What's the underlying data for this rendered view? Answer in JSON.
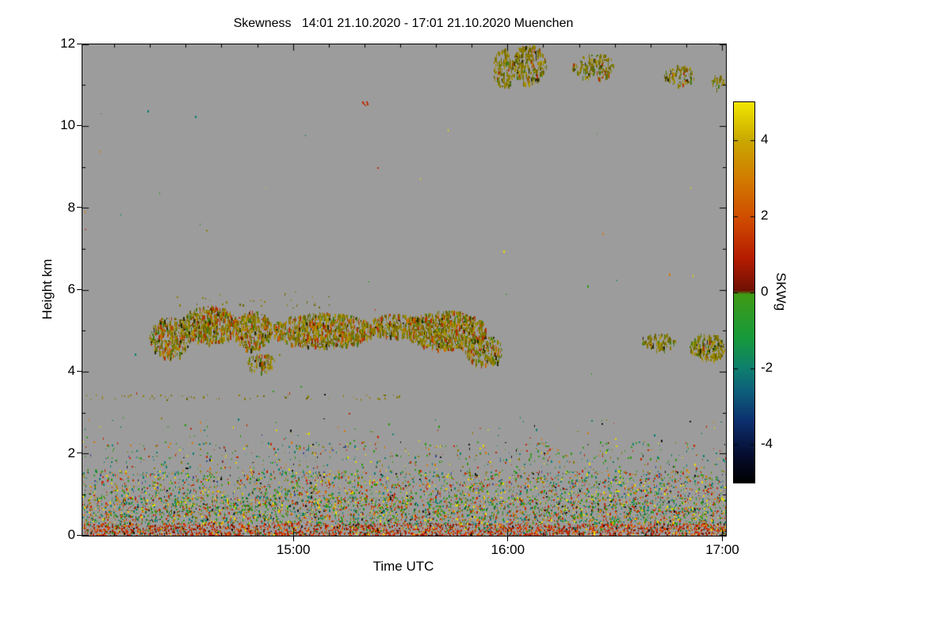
{
  "chart_data": {
    "type": "heatmap",
    "title": "Skewness   14:01 21.10.2020 - 17:01 21.10.2020 Muenchen",
    "xlabel": "Time UTC",
    "ylabel": "Height km",
    "x_range_hours": [
      14.0167,
      17.0167
    ],
    "x_ticks": [
      {
        "t": 15,
        "label": "15:00"
      },
      {
        "t": 16,
        "label": "16:00"
      },
      {
        "t": 17,
        "label": "17:00"
      }
    ],
    "x_minor_step_hours": 0.1666667,
    "y_range_km": [
      0,
      12
    ],
    "y_ticks": [
      0,
      2,
      4,
      6,
      8,
      10,
      12
    ],
    "y_minor_step_km": 1,
    "background_color": "#9c9c9c",
    "colorbar": {
      "label": "SKWg",
      "min": -5,
      "max": 5,
      "ticks": [
        4,
        2,
        0,
        -2,
        -4
      ],
      "stops": [
        [
          -5.0,
          "#000000"
        ],
        [
          -4.3,
          "#060c2e"
        ],
        [
          -3.4,
          "#0c2f6e"
        ],
        [
          -2.6,
          "#0d5f7a"
        ],
        [
          -2.0,
          "#0e7f6e"
        ],
        [
          -1.2,
          "#169a3c"
        ],
        [
          -0.05,
          "#3f9a14"
        ],
        [
          0.05,
          "#6f1004"
        ],
        [
          0.9,
          "#b51c00"
        ],
        [
          1.9,
          "#cf4a00"
        ],
        [
          3.0,
          "#d27c00"
        ],
        [
          4.0,
          "#c9a800"
        ],
        [
          5.0,
          "#f2e600"
        ]
      ]
    },
    "palettes": {
      "surface": [
        [
          "#c22800",
          5
        ],
        [
          "#e04a00",
          2.5
        ],
        [
          "#8a1800",
          2.5
        ],
        [
          "#d98400",
          1
        ],
        [
          "#2f8a10",
          1
        ],
        [
          "#0e7a6a",
          0.5
        ],
        [
          "#151515",
          0.7
        ],
        [
          "#e6d800",
          0.4
        ]
      ],
      "mix": [
        [
          "#2f9a14",
          3
        ],
        [
          "#0e8070",
          2.2
        ],
        [
          "#c22800",
          2.2
        ],
        [
          "#d97800",
          1.2
        ],
        [
          "#e6d800",
          1.6
        ],
        [
          "#1a6a2a",
          1
        ],
        [
          "#151515",
          0.6
        ],
        [
          "#8a7c00",
          1
        ]
      ],
      "mix2": [
        [
          "#2f9a14",
          2.5
        ],
        [
          "#0e8070",
          2
        ],
        [
          "#c22800",
          2
        ],
        [
          "#d97800",
          1
        ],
        [
          "#e6d800",
          1.4
        ],
        [
          "#8a7c00",
          1
        ],
        [
          "#151515",
          0.5
        ],
        [
          "#3a4a9a",
          0.4
        ]
      ],
      "cloud": [
        [
          "#8a7c00",
          5
        ],
        [
          "#6f6400",
          2.5
        ],
        [
          "#a89200",
          2.5
        ],
        [
          "#b03000",
          2
        ],
        [
          "#c96a00",
          1
        ],
        [
          "#447a10",
          1.5
        ],
        [
          "#252500",
          0.8
        ]
      ],
      "cloud2": [
        [
          "#8a7c00",
          5
        ],
        [
          "#6f6400",
          3
        ],
        [
          "#a89200",
          2
        ],
        [
          "#b03000",
          0.7
        ],
        [
          "#447a10",
          1
        ],
        [
          "#252500",
          0.8
        ]
      ],
      "olive_sparse": [
        [
          "#8a7c00",
          3
        ],
        [
          "#6f6400",
          2
        ],
        [
          "#9a8a3a",
          1
        ]
      ],
      "red": [
        [
          "#c22800",
          1
        ]
      ]
    },
    "regions": [
      {
        "name": "surface-layer",
        "t": [
          14.017,
          17.017
        ],
        "h": [
          0.0,
          0.3
        ],
        "density": 0.8,
        "palette": "surface"
      },
      {
        "name": "boundary-layer-lower",
        "t": [
          14.017,
          17.017
        ],
        "h": [
          0.3,
          0.95
        ],
        "density": 0.45,
        "palette": "mix"
      },
      {
        "name": "boundary-layer-upper",
        "t": [
          14.017,
          17.017
        ],
        "h": [
          0.95,
          1.6
        ],
        "density": 0.25,
        "palette": "mix2"
      },
      {
        "name": "aerosol-sparse",
        "t": [
          14.017,
          17.017
        ],
        "h": [
          1.6,
          2.3
        ],
        "density": 0.07,
        "palette": "mix2"
      },
      {
        "name": "aerosol-very-sparse",
        "t": [
          14.017,
          17.017
        ],
        "h": [
          2.3,
          2.9
        ],
        "density": 0.012,
        "palette": "mix2"
      },
      {
        "name": "stray-dots",
        "t": [
          14.017,
          17.017
        ],
        "h": [
          2.9,
          10.4
        ],
        "density": 0.0005,
        "palette": "mix2"
      },
      {
        "name": "thin-layer-3p4km",
        "t": [
          14.02,
          15.5
        ],
        "h": [
          3.32,
          3.45
        ],
        "density": 0.09,
        "palette": "olive_sparse"
      },
      {
        "name": "cloud-a",
        "t": [
          14.33,
          14.52
        ],
        "h": [
          4.35,
          5.35
        ],
        "density": 0.5,
        "palette": "cloud",
        "streaky": true,
        "shape": "ellipse"
      },
      {
        "name": "cloud-b",
        "t": [
          14.48,
          14.74
        ],
        "h": [
          4.7,
          5.62
        ],
        "density": 0.6,
        "palette": "cloud",
        "streaky": true,
        "shape": "ellipse"
      },
      {
        "name": "cloud-c",
        "t": [
          14.72,
          14.9
        ],
        "h": [
          4.55,
          5.5
        ],
        "density": 0.55,
        "palette": "cloud",
        "streaky": true,
        "shape": "ellipse"
      },
      {
        "name": "cloud-d-low",
        "t": [
          14.78,
          14.92
        ],
        "h": [
          4.0,
          4.45
        ],
        "density": 0.4,
        "palette": "cloud",
        "streaky": true,
        "shape": "ellipse"
      },
      {
        "name": "cloud-e",
        "t": [
          14.9,
          15.38
        ],
        "h": [
          4.6,
          5.45
        ],
        "density": 0.6,
        "palette": "cloud",
        "streaky": true,
        "shape": "ellipse"
      },
      {
        "name": "cloud-f",
        "t": [
          15.35,
          15.6
        ],
        "h": [
          4.85,
          5.42
        ],
        "density": 0.5,
        "palette": "cloud",
        "streaky": true,
        "shape": "ellipse"
      },
      {
        "name": "cloud-g",
        "t": [
          15.52,
          15.9
        ],
        "h": [
          4.55,
          5.5
        ],
        "density": 0.6,
        "palette": "cloud",
        "streaky": true,
        "shape": "ellipse"
      },
      {
        "name": "cloud-tail",
        "t": [
          15.8,
          15.98
        ],
        "h": [
          4.15,
          4.9
        ],
        "density": 0.45,
        "palette": "cloud",
        "streaky": true,
        "shape": "ellipse"
      },
      {
        "name": "cloud-top-fuzz",
        "t": [
          14.45,
          15.2
        ],
        "h": [
          5.55,
          5.95
        ],
        "density": 0.035,
        "palette": "olive_sparse"
      },
      {
        "name": "cloud-right-small",
        "t": [
          16.62,
          16.78
        ],
        "h": [
          4.55,
          4.95
        ],
        "density": 0.35,
        "palette": "cloud2",
        "streaky": true,
        "shape": "ellipse"
      },
      {
        "name": "cloud-right-edge",
        "t": [
          16.85,
          17.017
        ],
        "h": [
          4.3,
          4.95
        ],
        "density": 0.5,
        "palette": "cloud2",
        "streaky": true,
        "shape": "ellipse"
      },
      {
        "name": "cirrus-1",
        "t": [
          15.93,
          16.03
        ],
        "h": [
          10.95,
          11.9
        ],
        "density": 0.45,
        "palette": "cloud2",
        "streaky": true,
        "shape": "ellipse"
      },
      {
        "name": "cirrus-2",
        "t": [
          16.02,
          16.18
        ],
        "h": [
          11.05,
          12.0
        ],
        "density": 0.5,
        "palette": "cloud2",
        "streaky": true,
        "shape": "ellipse"
      },
      {
        "name": "cirrus-3",
        "t": [
          16.3,
          16.5
        ],
        "h": [
          11.15,
          11.8
        ],
        "density": 0.35,
        "palette": "cloud2",
        "streaky": true,
        "shape": "ellipse"
      },
      {
        "name": "cirrus-4",
        "t": [
          16.73,
          16.87
        ],
        "h": [
          11.0,
          11.5
        ],
        "density": 0.35,
        "palette": "cloud2",
        "streaky": true,
        "shape": "ellipse"
      },
      {
        "name": "cirrus-5",
        "t": [
          16.95,
          17.01
        ],
        "h": [
          10.85,
          11.3
        ],
        "density": 0.3,
        "palette": "cloud2",
        "streaky": true,
        "shape": "ellipse"
      },
      {
        "name": "isolated-red-dot",
        "t": [
          15.32,
          15.345
        ],
        "h": [
          10.5,
          10.6
        ],
        "density": 0.9,
        "palette": "red"
      }
    ]
  }
}
